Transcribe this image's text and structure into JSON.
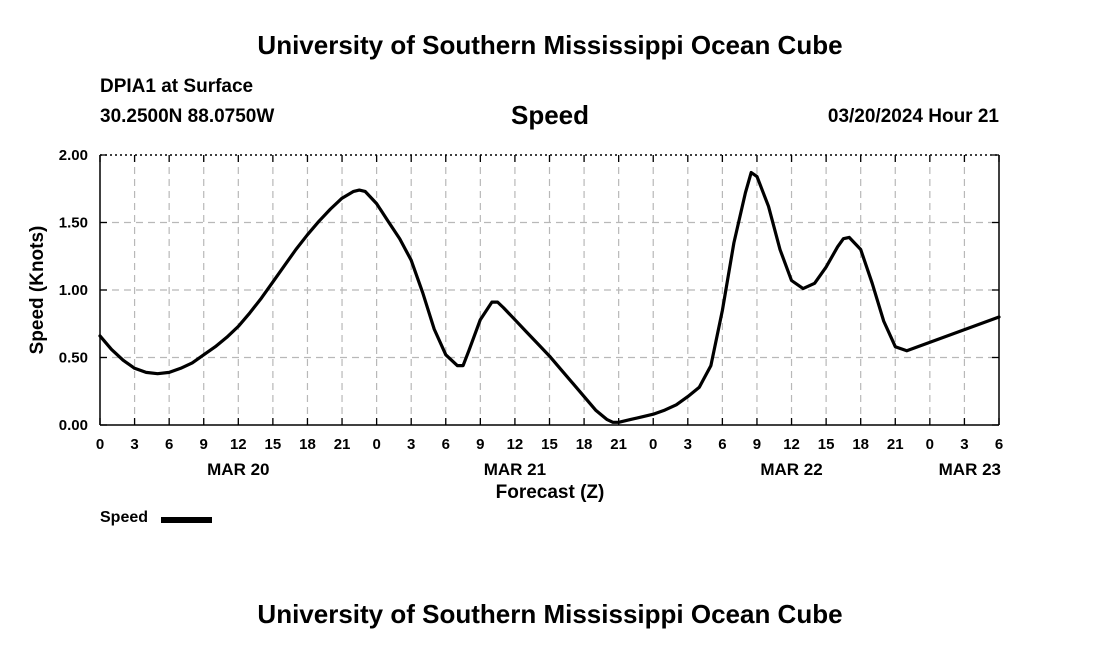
{
  "page": {
    "title_top": "University of Southern Mississippi Ocean Cube",
    "title_bottom": "University of Southern Mississippi Ocean Cube",
    "station": "DPIA1 at Surface",
    "coords": "30.2500N  88.0750W",
    "variable": "Speed",
    "datetime": "03/20/2024 Hour 21"
  },
  "chart_data": {
    "type": "line",
    "title": "Speed",
    "xlabel": "Forecast (Z)",
    "ylabel": "Speed (Knots)",
    "x_unit": "hours since MAR 20 00Z",
    "xlim": [
      0,
      78
    ],
    "ylim": [
      0,
      2
    ],
    "grid": true,
    "legend": "bottom-left",
    "y_ticks": [
      {
        "value": 0,
        "label": "0.00"
      },
      {
        "value": 0.5,
        "label": "0.50"
      },
      {
        "value": 1.0,
        "label": "1.00"
      },
      {
        "value": 1.5,
        "label": "1.50"
      },
      {
        "value": 2.0,
        "label": "2.00"
      }
    ],
    "x_ticks": [
      {
        "value": 0,
        "label": "0"
      },
      {
        "value": 3,
        "label": "3"
      },
      {
        "value": 6,
        "label": "6"
      },
      {
        "value": 9,
        "label": "9"
      },
      {
        "value": 12,
        "label": "12"
      },
      {
        "value": 15,
        "label": "15"
      },
      {
        "value": 18,
        "label": "18"
      },
      {
        "value": 21,
        "label": "21"
      },
      {
        "value": 24,
        "label": "0"
      },
      {
        "value": 27,
        "label": "3"
      },
      {
        "value": 30,
        "label": "6"
      },
      {
        "value": 33,
        "label": "9"
      },
      {
        "value": 36,
        "label": "12"
      },
      {
        "value": 39,
        "label": "15"
      },
      {
        "value": 42,
        "label": "18"
      },
      {
        "value": 45,
        "label": "21"
      },
      {
        "value": 48,
        "label": "0"
      },
      {
        "value": 51,
        "label": "3"
      },
      {
        "value": 54,
        "label": "6"
      },
      {
        "value": 57,
        "label": "9"
      },
      {
        "value": 60,
        "label": "12"
      },
      {
        "value": 63,
        "label": "15"
      },
      {
        "value": 66,
        "label": "18"
      },
      {
        "value": 69,
        "label": "21"
      },
      {
        "value": 72,
        "label": "0"
      },
      {
        "value": 75,
        "label": "3"
      },
      {
        "value": 78,
        "label": "6"
      }
    ],
    "date_labels": [
      {
        "value": 12,
        "label": "MAR 20"
      },
      {
        "value": 36,
        "label": "MAR 21"
      },
      {
        "value": 60,
        "label": "MAR 22"
      },
      {
        "value": 78,
        "label": "MAR 23"
      }
    ],
    "series": [
      {
        "name": "Speed",
        "color": "#000000",
        "x": [
          0,
          1,
          2,
          3,
          4,
          5,
          6,
          7,
          8,
          9,
          10,
          11,
          12,
          13,
          14,
          15,
          16,
          17,
          18,
          19,
          20,
          21,
          22,
          22.5,
          23,
          24,
          25,
          26,
          27,
          28,
          29,
          30,
          31,
          31.5,
          32,
          33,
          34,
          34.5,
          35,
          36,
          37,
          38,
          39,
          40,
          41,
          42,
          43,
          44,
          44.5,
          45,
          46,
          47,
          48,
          49,
          50,
          51,
          52,
          53,
          54,
          55,
          56,
          56.5,
          57,
          58,
          59,
          60,
          61,
          62,
          63,
          64,
          64.5,
          65,
          66,
          67,
          68,
          69,
          70,
          78
        ],
        "values": [
          0.66,
          0.56,
          0.48,
          0.42,
          0.39,
          0.38,
          0.39,
          0.42,
          0.46,
          0.52,
          0.58,
          0.65,
          0.73,
          0.83,
          0.94,
          1.06,
          1.18,
          1.3,
          1.41,
          1.51,
          1.6,
          1.68,
          1.73,
          1.74,
          1.73,
          1.64,
          1.51,
          1.38,
          1.22,
          0.98,
          0.71,
          0.52,
          0.44,
          0.44,
          0.55,
          0.78,
          0.91,
          0.91,
          0.87,
          0.78,
          0.69,
          0.6,
          0.51,
          0.41,
          0.31,
          0.21,
          0.11,
          0.04,
          0.02,
          0.02,
          0.04,
          0.06,
          0.08,
          0.11,
          0.15,
          0.21,
          0.28,
          0.44,
          0.85,
          1.35,
          1.72,
          1.87,
          1.84,
          1.62,
          1.3,
          1.07,
          1.01,
          1.05,
          1.17,
          1.32,
          1.38,
          1.39,
          1.3,
          1.05,
          0.77,
          0.58,
          0.55,
          0.8
        ]
      }
    ]
  }
}
